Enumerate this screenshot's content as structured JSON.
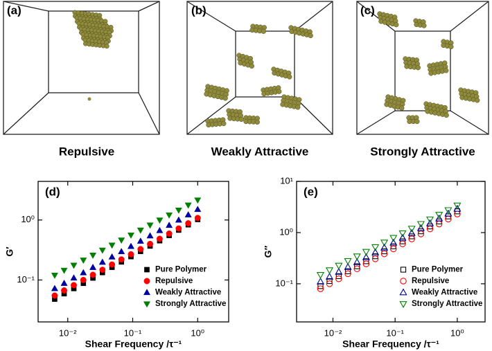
{
  "panels": [
    {
      "label": "(a)",
      "caption": "Repulsive"
    },
    {
      "label": "(b)",
      "caption": "Weakly Attractive"
    },
    {
      "label": "(c)",
      "caption": "Strongly Attractive"
    }
  ],
  "chart_data": [
    {
      "type": "scatter",
      "panel_label": "(d)",
      "x_label": "Shear Frequency /τ⁻¹",
      "y_label": "G′",
      "x_log": true,
      "y_log": true,
      "legend": "lower right",
      "xlim": [
        0.0035,
        3
      ],
      "ylim": [
        0.02,
        4.4
      ],
      "xticks": [
        {
          "value": 0.01,
          "label": "10⁻²"
        },
        {
          "value": 0.1,
          "label": "10⁻¹"
        },
        {
          "value": 1,
          "label": "10⁰"
        }
      ],
      "yticks": [
        {
          "value": 0.1,
          "label": "10⁻¹"
        },
        {
          "value": 1,
          "label": "10⁰"
        }
      ],
      "x": [
        0.0063,
        0.0088,
        0.0124,
        0.0174,
        0.0244,
        0.0342,
        0.048,
        0.067,
        0.094,
        0.132,
        0.185,
        0.26,
        0.364,
        0.51,
        0.716,
        1.0
      ],
      "series": [
        {
          "name": "Pure Polymer",
          "color": "#000000",
          "marker": "square",
          "filled": true,
          "values": [
            0.048,
            0.059,
            0.072,
            0.088,
            0.108,
            0.133,
            0.163,
            0.2,
            0.245,
            0.3,
            0.368,
            0.451,
            0.553,
            0.678,
            0.832,
            1.02
          ]
        },
        {
          "name": "Repulsive",
          "color": "#ff0000",
          "marker": "circle",
          "filled": true,
          "values": [
            0.055,
            0.067,
            0.082,
            0.1,
            0.122,
            0.148,
            0.181,
            0.22,
            0.268,
            0.327,
            0.399,
            0.486,
            0.593,
            0.722,
            0.881,
            1.08
          ]
        },
        {
          "name": "Weakly Attractive",
          "color": "#0000a0",
          "marker": "triangle-up",
          "filled": true,
          "values": [
            0.072,
            0.088,
            0.108,
            0.132,
            0.162,
            0.198,
            0.242,
            0.297,
            0.363,
            0.444,
            0.544,
            0.666,
            0.815,
            0.997,
            1.22,
            1.5
          ]
        },
        {
          "name": "Strongly Attractive",
          "color": "#008000",
          "marker": "triangle-down",
          "filled": true,
          "values": [
            0.12,
            0.145,
            0.176,
            0.214,
            0.259,
            0.314,
            0.381,
            0.462,
            0.56,
            0.678,
            0.822,
            0.996,
            1.21,
            1.46,
            1.77,
            2.15
          ]
        }
      ]
    },
    {
      "type": "scatter",
      "panel_label": "(e)",
      "x_label": "Shear Frequency /τ⁻¹",
      "y_label": "G″",
      "x_log": true,
      "y_log": true,
      "legend": "lower right",
      "xlim": [
        0.0026,
        2.8
      ],
      "ylim": [
        0.018,
        10
      ],
      "xticks": [
        {
          "value": 0.01,
          "label": "10⁻²"
        },
        {
          "value": 0.1,
          "label": "10⁻¹"
        },
        {
          "value": 1,
          "label": "10⁰"
        }
      ],
      "yticks": [
        {
          "value": 0.1,
          "label": "10⁻¹"
        },
        {
          "value": 1,
          "label": "10⁰"
        },
        {
          "value": 10,
          "label": "10¹"
        }
      ],
      "x": [
        0.0063,
        0.0088,
        0.0124,
        0.0174,
        0.0244,
        0.0342,
        0.048,
        0.067,
        0.094,
        0.132,
        0.185,
        0.26,
        0.364,
        0.51,
        0.716,
        1.0
      ],
      "series": [
        {
          "name": "Pure Polymer",
          "color": "#000000",
          "marker": "square",
          "filled": false,
          "values": [
            0.09,
            0.113,
            0.141,
            0.176,
            0.22,
            0.276,
            0.345,
            0.431,
            0.54,
            0.675,
            0.845,
            1.06,
            1.32,
            1.65,
            2.07,
            2.6
          ]
        },
        {
          "name": "Repulsive",
          "color": "#ff0000",
          "marker": "circle",
          "filled": false,
          "values": [
            0.08,
            0.1,
            0.125,
            0.157,
            0.196,
            0.245,
            0.307,
            0.384,
            0.48,
            0.601,
            0.752,
            0.94,
            1.18,
            1.47,
            1.84,
            2.3
          ]
        },
        {
          "name": "Weakly Attractive",
          "color": "#0000a0",
          "marker": "triangle-up",
          "filled": false,
          "values": [
            0.11,
            0.137,
            0.17,
            0.212,
            0.263,
            0.328,
            0.408,
            0.507,
            0.631,
            0.785,
            0.977,
            1.22,
            1.51,
            1.88,
            2.34,
            2.9
          ]
        },
        {
          "name": "Strongly Attractive",
          "color": "#008000",
          "marker": "triangle-down",
          "filled": false,
          "values": [
            0.15,
            0.185,
            0.227,
            0.28,
            0.345,
            0.424,
            0.522,
            0.643,
            0.792,
            0.975,
            1.2,
            1.48,
            1.82,
            2.24,
            2.76,
            3.4
          ]
        }
      ]
    }
  ]
}
